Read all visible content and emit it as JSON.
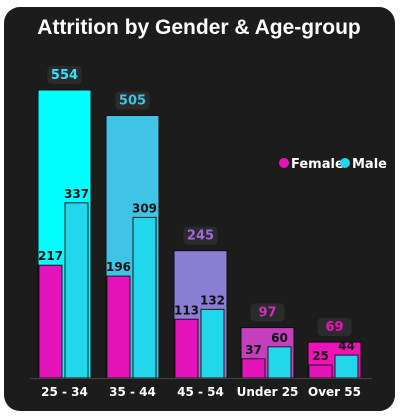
{
  "chart_data": {
    "type": "bar",
    "title": "Attrition by Gender & Age-group",
    "categories": [
      "25 - 34",
      "35 - 44",
      "45 - 54",
      "Under 25",
      "Over 55"
    ],
    "series": [
      {
        "name": "Female",
        "values": [
          217,
          196,
          113,
          37,
          25
        ],
        "color": "#e514ba"
      },
      {
        "name": "Male",
        "values": [
          337,
          309,
          132,
          60,
          44
        ],
        "color": "#22d6ec"
      }
    ],
    "totals": [
      554,
      505,
      245,
      97,
      69
    ],
    "total_colors": [
      "#00ffff",
      "#3fc3e6",
      "#8a7ed3",
      "#c43ebd",
      "#ee12b8"
    ],
    "total_label_colors": [
      "#32e2ff",
      "#3fc3e6",
      "#a06ad6",
      "#d22dc4",
      "#ee12b8"
    ],
    "ylim": [
      0,
      554
    ],
    "grid": false,
    "legend_position": "right"
  }
}
